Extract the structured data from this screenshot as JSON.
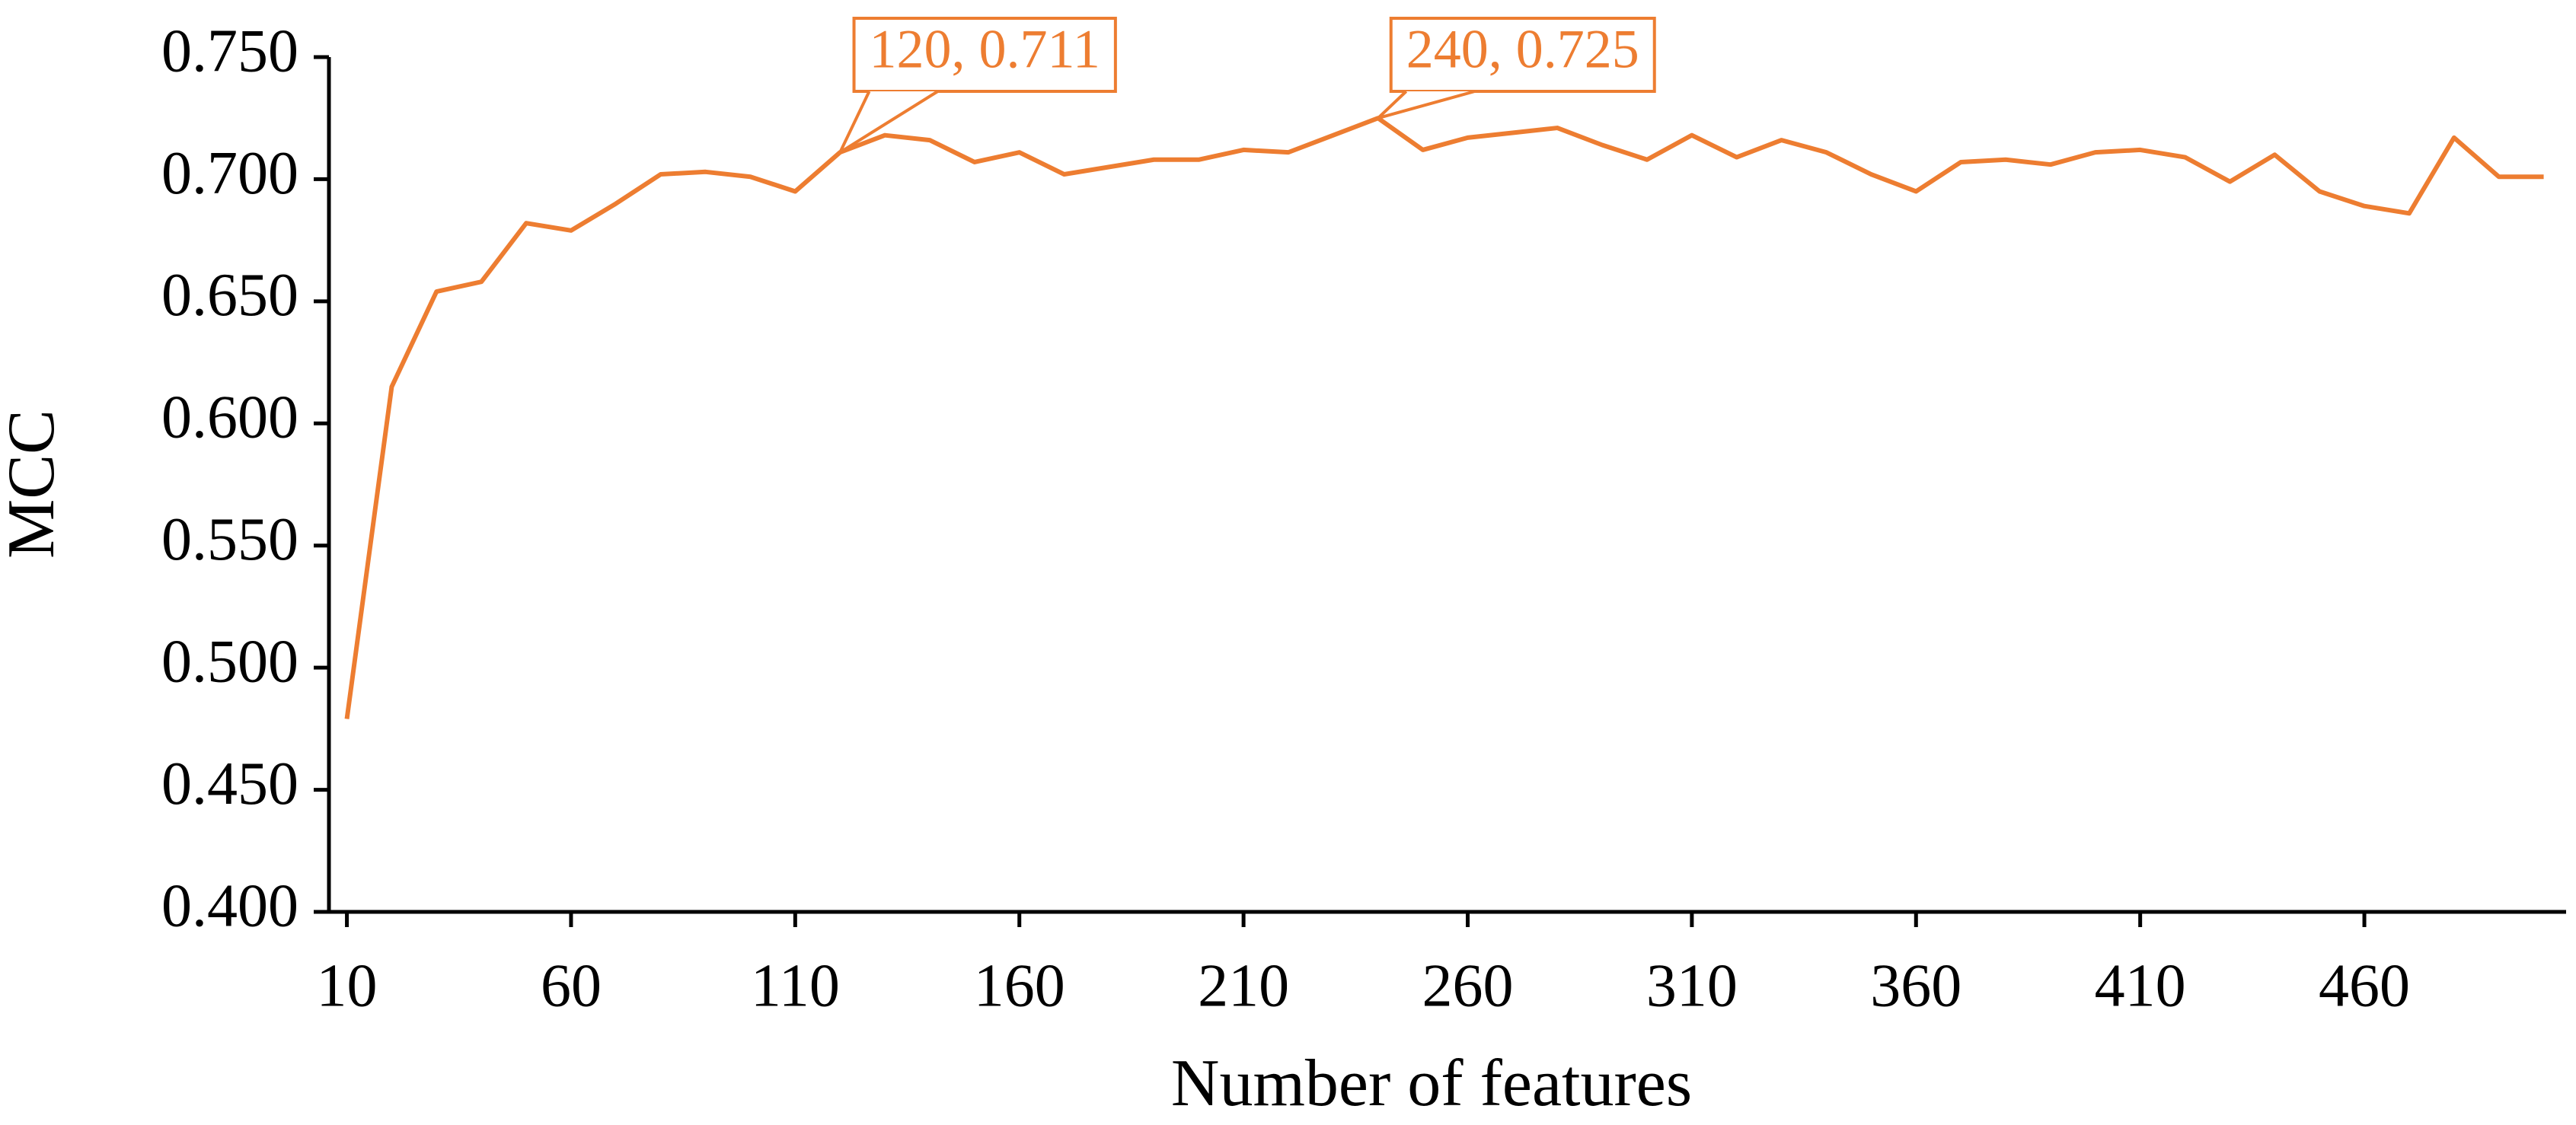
{
  "chart_data": {
    "type": "line",
    "x_label": "Number of features",
    "y_label": "MCC",
    "x": [
      10,
      20,
      30,
      40,
      50,
      60,
      70,
      80,
      90,
      100,
      110,
      120,
      130,
      140,
      150,
      160,
      170,
      180,
      190,
      200,
      210,
      220,
      230,
      240,
      250,
      260,
      270,
      280,
      290,
      300,
      310,
      320,
      330,
      340,
      350,
      360,
      370,
      380,
      390,
      400,
      410,
      420,
      430,
      440,
      450,
      460,
      470,
      480,
      490,
      500
    ],
    "series": [
      {
        "color": "#ED7D31",
        "values": [
          0.479,
          0.615,
          0.654,
          0.658,
          0.682,
          0.679,
          0.69,
          0.702,
          0.703,
          0.701,
          0.695,
          0.711,
          0.718,
          0.716,
          0.707,
          0.711,
          0.702,
          0.705,
          0.708,
          0.708,
          0.712,
          0.711,
          0.718,
          0.725,
          0.712,
          0.717,
          0.719,
          0.721,
          0.714,
          0.708,
          0.718,
          0.709,
          0.716,
          0.711,
          0.702,
          0.695,
          0.707,
          0.708,
          0.706,
          0.711,
          0.712,
          0.709,
          0.699,
          0.71,
          0.695,
          0.689,
          0.686,
          0.717,
          0.701,
          0.701
        ]
      }
    ],
    "xlim": [
      6,
      505
    ],
    "xticks": [
      10,
      60,
      110,
      160,
      210,
      260,
      310,
      360,
      410,
      460
    ],
    "ylim": [
      0.4,
      0.75
    ],
    "yticks": [
      {
        "value": 0.4,
        "label": "0.400"
      },
      {
        "value": 0.45,
        "label": "0.450"
      },
      {
        "value": 0.5,
        "label": "0.500"
      },
      {
        "value": 0.55,
        "label": "0.550"
      },
      {
        "value": 0.6,
        "label": "0.600"
      },
      {
        "value": 0.65,
        "label": "0.650"
      },
      {
        "value": 0.7,
        "label": "0.700"
      },
      {
        "value": 0.75,
        "label": "0.750"
      }
    ],
    "annotations": [
      {
        "text": "120, 0.711",
        "x": 120,
        "y": 0.711
      },
      {
        "text": "240, 0.725",
        "x": 240,
        "y": 0.725
      }
    ]
  }
}
